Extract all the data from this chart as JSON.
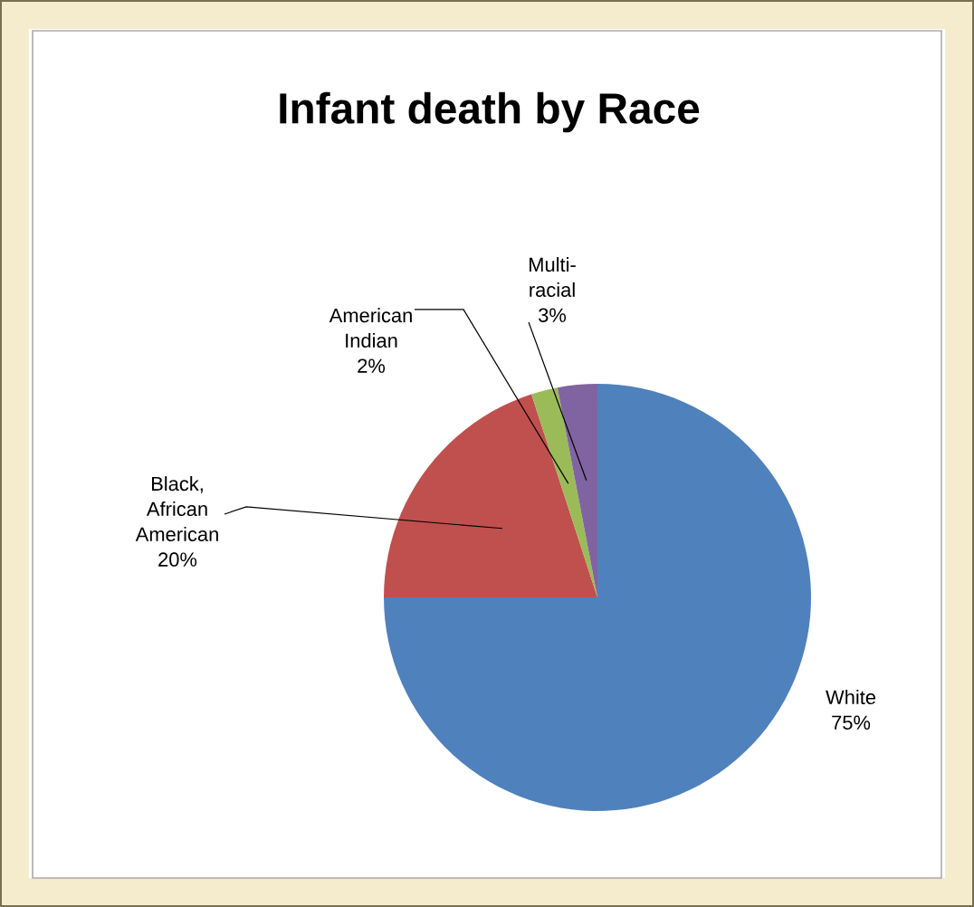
{
  "chart_data": {
    "type": "pie",
    "title": "Infant death by Race",
    "categories": [
      "White",
      "Black, African American",
      "American Indian",
      "Multi-racial"
    ],
    "values": [
      75,
      20,
      2,
      3
    ],
    "value_labels": [
      "75%",
      "20%",
      "2%",
      "3%"
    ],
    "colors": [
      "#4f81bd",
      "#c0504d",
      "#9bbb59",
      "#8064a2"
    ]
  }
}
